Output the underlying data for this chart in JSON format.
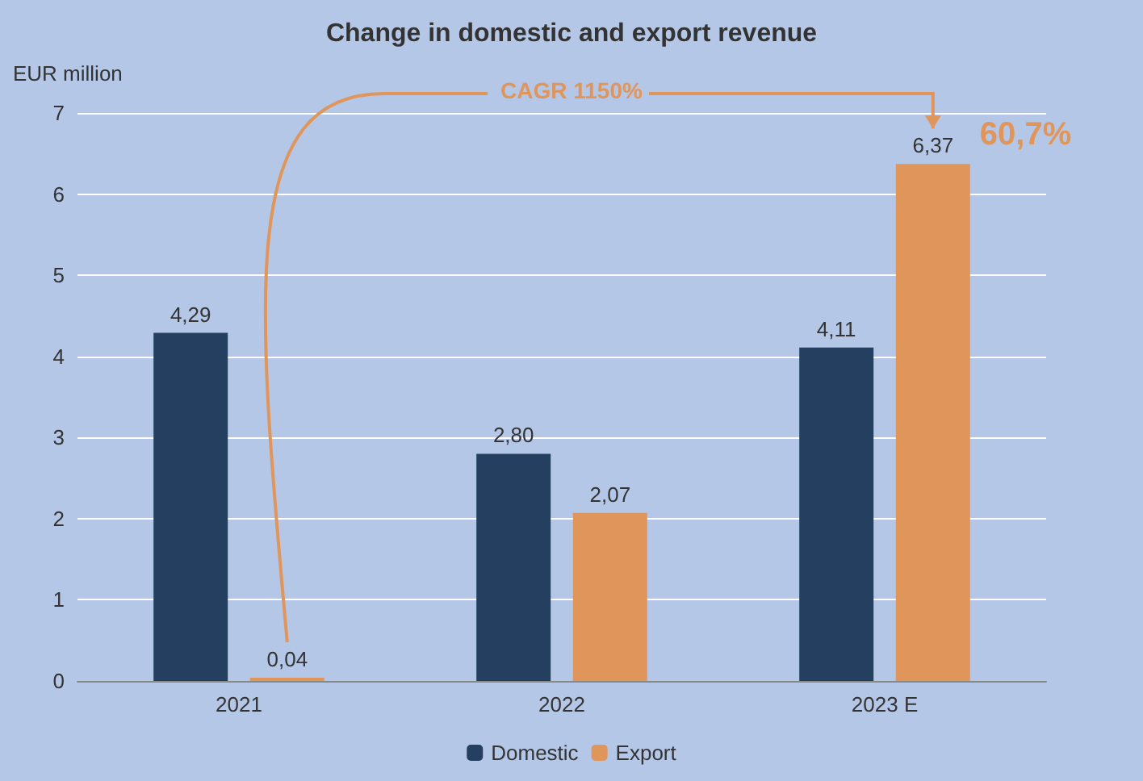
{
  "chart_data": {
    "type": "bar",
    "title": "Change in domestic and export revenue",
    "ylabel": "EUR million",
    "categories": [
      "2021",
      "2022",
      "2023 E"
    ],
    "series": [
      {
        "name": "Domestic",
        "color": "#243f60",
        "values": [
          4.29,
          2.8,
          4.11
        ],
        "value_labels": [
          "4,29",
          "2,80",
          "4,11"
        ]
      },
      {
        "name": "Export",
        "color": "#e0955a",
        "values": [
          0.04,
          2.07,
          6.37
        ],
        "value_labels": [
          "0,04",
          "2,07",
          "6,37"
        ]
      }
    ],
    "ylim": [
      0,
      7
    ],
    "yticks": [
      0,
      1,
      2,
      3,
      4,
      5,
      6,
      7
    ],
    "grid": "y",
    "legend": "bottom",
    "annotations": [
      "CAGR 1150%",
      "60,7%"
    ]
  }
}
